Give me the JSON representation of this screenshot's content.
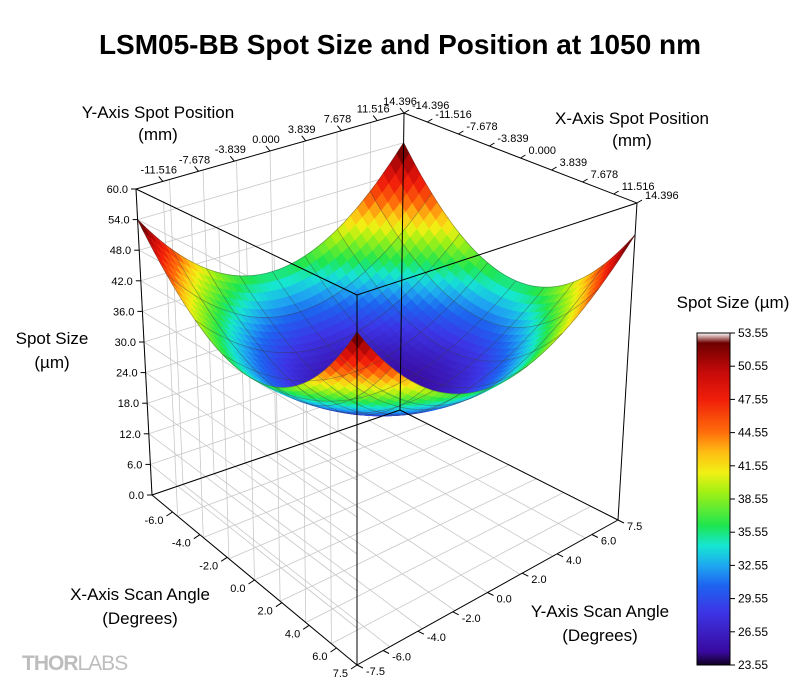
{
  "chart_data": {
    "type": "surface3d",
    "title": "LSM05-BB Spot Size and Position at 1050 nm",
    "z_axis": {
      "label_line1": "Spot Size",
      "label_line2": "(µm)",
      "ticks": [
        "0.0",
        "6.0",
        "12.0",
        "18.0",
        "24.0",
        "30.0",
        "36.0",
        "42.0",
        "48.0",
        "54.0",
        "60.0"
      ],
      "range": [
        0,
        60
      ]
    },
    "x_scan_axis": {
      "label_line1": "X-Axis Scan Angle",
      "label_line2": "(Degrees)",
      "ticks": [
        "-6.0",
        "-4.0",
        "-2.0",
        "0.0",
        "2.0",
        "4.0",
        "6.0",
        "7.5"
      ],
      "range": [
        -7.5,
        7.5
      ]
    },
    "y_scan_axis": {
      "label_line1": "Y-Axis Scan Angle",
      "label_line2": "(Degrees)",
      "ticks": [
        "-7.5",
        "-6.0",
        "-4.0",
        "-2.0",
        "0.0",
        "2.0",
        "4.0",
        "6.0",
        "7.5"
      ],
      "range": [
        -7.5,
        7.5
      ]
    },
    "y_position_axis": {
      "label_line1": "Y-Axis Spot Position",
      "label_line2": "(mm)",
      "ticks": [
        "-11.516",
        "-7.678",
        "-3.839",
        "0.000",
        "3.839",
        "7.678",
        "11.516",
        "14.396"
      ],
      "range": [
        -14.396,
        14.396
      ]
    },
    "x_position_axis": {
      "label_line1": "X-Axis Spot Position",
      "label_line2": "(mm)",
      "ticks": [
        "-14.396",
        "-11.516",
        "-7.678",
        "-3.839",
        "0.000",
        "3.839",
        "7.678",
        "11.516",
        "14.396"
      ],
      "range": [
        -14.396,
        14.396
      ]
    },
    "colorbar": {
      "title": "Spot Size (µm)",
      "ticks": [
        "53.55",
        "50.55",
        "47.55",
        "44.55",
        "41.55",
        "38.55",
        "35.55",
        "32.55",
        "29.55",
        "26.55",
        "23.55"
      ],
      "range": [
        23.55,
        53.55
      ]
    },
    "surface": {
      "description_model": "bowl",
      "min_spot_size": 24.5,
      "corner_spot_size": 54.0,
      "edge_midpoint_spot_size": 36.0
    }
  },
  "logo": {
    "part1": "THOR",
    "part2": "LABS"
  },
  "colors": {
    "background": "#ffffff",
    "box": "#000000",
    "grid": "#c8c8c8"
  }
}
